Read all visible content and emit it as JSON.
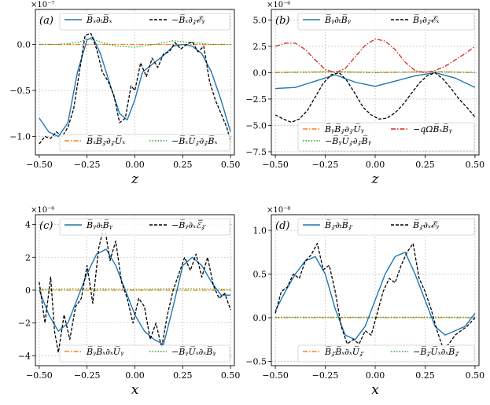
{
  "chart_data": [
    {
      "type": "line",
      "panel": "(a)",
      "xlabel": "z",
      "exponent": "×10⁻⁷",
      "xlim": [
        -0.52,
        0.52
      ],
      "ylim": [
        -1.2,
        0.38
      ],
      "xticks": [
        -0.5,
        -0.25,
        0.0,
        0.25,
        0.5
      ],
      "xtick_labels": [
        "−0.50",
        "−0.25",
        "0.00",
        "0.25",
        "0.50"
      ],
      "yticks": [
        -1.0,
        -0.5,
        0.0
      ],
      "ytick_labels": [
        "−1.0",
        "−0.5",
        "0.0"
      ],
      "legend_top": [
        "B̅ₓ∂ₜB̅ₓ",
        "−B̅ₓ∂𝓏ℰ̅ᵧ"
      ],
      "legend_bottom": [
        "B̅ₓB̅𝓏∂𝓏U̅ₓ",
        "−B̅ₓU̅𝓏∂𝓏B̅ₓ"
      ],
      "series": [
        {
          "name": "B̅ₓ∂ₜB̅ₓ",
          "style": "blue",
          "x": [
            -0.5,
            -0.45,
            -0.4,
            -0.35,
            -0.3,
            -0.25,
            -0.22,
            -0.18,
            -0.12,
            -0.08,
            -0.04,
            0.0,
            0.04,
            0.1,
            0.15,
            0.2,
            0.25,
            0.3,
            0.35,
            0.4,
            0.45,
            0.5
          ],
          "y": [
            -0.8,
            -0.95,
            -1.0,
            -0.85,
            -0.3,
            0.05,
            0.08,
            -0.1,
            -0.5,
            -0.75,
            -0.82,
            -0.6,
            -0.3,
            -0.2,
            -0.12,
            -0.02,
            0.0,
            -0.02,
            -0.1,
            -0.3,
            -0.6,
            -0.95
          ]
        },
        {
          "name": "−B̅ₓ∂𝓏ℰ̅ᵧ",
          "style": "black-dashed",
          "x": [
            -0.5,
            -0.47,
            -0.44,
            -0.41,
            -0.38,
            -0.35,
            -0.32,
            -0.29,
            -0.26,
            -0.23,
            -0.2,
            -0.17,
            -0.14,
            -0.11,
            -0.08,
            -0.05,
            -0.02,
            0.0,
            0.03,
            0.06,
            0.09,
            0.12,
            0.15,
            0.18,
            0.21,
            0.24,
            0.27,
            0.3,
            0.33,
            0.36,
            0.39,
            0.42,
            0.45,
            0.48,
            0.5
          ],
          "y": [
            -1.08,
            -1.0,
            -1.02,
            -0.95,
            -1.0,
            -0.9,
            -0.7,
            -0.3,
            0.1,
            0.12,
            -0.05,
            -0.3,
            -0.4,
            -0.55,
            -0.85,
            -0.8,
            -0.45,
            -0.5,
            -0.2,
            -0.35,
            -0.15,
            -0.25,
            -0.1,
            -0.08,
            0.02,
            -0.05,
            0.0,
            0.03,
            -0.08,
            -0.02,
            -0.4,
            -0.6,
            -0.75,
            -0.9,
            -1.05
          ]
        },
        {
          "name": "B̅ₓB̅𝓏∂𝓏U̅ₓ",
          "style": "orange-dashdot",
          "x": [
            -0.5,
            0.5
          ],
          "y": [
            0.0,
            0.0
          ]
        },
        {
          "name": "−B̅ₓU̅𝓏∂𝓏B̅ₓ",
          "style": "green-dotted",
          "x": [
            -0.5,
            -0.4,
            -0.3,
            -0.25,
            -0.2,
            -0.1,
            0.0,
            0.1,
            0.2,
            0.3,
            0.4,
            0.5
          ],
          "y": [
            0.0,
            0.0,
            0.02,
            0.06,
            0.04,
            -0.02,
            -0.03,
            0.0,
            0.04,
            0.02,
            0.0,
            0.0
          ]
        }
      ]
    },
    {
      "type": "line",
      "panel": "(b)",
      "xlabel": "z",
      "exponent": "×10⁻⁶",
      "xlim": [
        -0.52,
        0.52
      ],
      "ylim": [
        -7.8,
        6.0
      ],
      "xticks": [
        -0.5,
        -0.25,
        0.0,
        0.25,
        0.5
      ],
      "xtick_labels": [
        "−0.50",
        "−0.25",
        "0.00",
        "0.25",
        "0.50"
      ],
      "yticks": [
        -7.5,
        -5.0,
        -2.5,
        0.0,
        2.5,
        5.0
      ],
      "ytick_labels": [
        "−7.5",
        "−5.0",
        "−2.5",
        "0.0",
        "2.5",
        "5.0"
      ],
      "legend_top": [
        "B̅ᵧ∂ₜB̅ᵧ",
        "B̅ᵧ∂𝓏ℰ̅ₓ"
      ],
      "legend_bottom": [
        "B̅ᵧB̅𝓏∂𝓏U̅ᵧ",
        "−qΩB̅ₓB̅ᵧ",
        "−B̅ᵧU̅𝓏∂𝓏B̅ᵧ"
      ],
      "series": [
        {
          "name": "B̅ᵧ∂ₜB̅ᵧ",
          "style": "blue",
          "x": [
            -0.5,
            -0.4,
            -0.3,
            -0.2,
            -0.1,
            0.0,
            0.1,
            0.2,
            0.3,
            0.4,
            0.5
          ],
          "y": [
            -1.5,
            -1.4,
            -0.8,
            -0.2,
            -0.9,
            -1.3,
            -0.8,
            -0.3,
            0.0,
            -0.5,
            -1.4
          ]
        },
        {
          "name": "B̅ᵧ∂𝓏ℰ̅ₓ",
          "style": "black-dashed",
          "x": [
            -0.5,
            -0.46,
            -0.42,
            -0.38,
            -0.34,
            -0.3,
            -0.26,
            -0.22,
            -0.18,
            -0.14,
            -0.1,
            -0.06,
            -0.02,
            0.02,
            0.06,
            0.1,
            0.14,
            0.18,
            0.22,
            0.26,
            0.3,
            0.34,
            0.38,
            0.42,
            0.46,
            0.5
          ],
          "y": [
            -4.0,
            -4.4,
            -4.7,
            -4.4,
            -3.6,
            -2.3,
            -1.0,
            -0.2,
            0.0,
            -0.8,
            -2.0,
            -3.3,
            -4.0,
            -4.4,
            -4.3,
            -3.8,
            -3.0,
            -2.0,
            -1.0,
            -0.3,
            0.0,
            -0.6,
            -1.5,
            -2.5,
            -3.3,
            -4.2
          ]
        },
        {
          "name": "−qΩB̅ₓB̅ᵧ",
          "style": "red-dashdot",
          "x": [
            -0.5,
            -0.45,
            -0.4,
            -0.35,
            -0.3,
            -0.25,
            -0.2,
            -0.15,
            -0.1,
            -0.05,
            0.0,
            0.05,
            0.1,
            0.15,
            0.2,
            0.25,
            0.3,
            0.35,
            0.4,
            0.45,
            0.5
          ],
          "y": [
            2.5,
            2.8,
            2.8,
            2.2,
            1.2,
            0.3,
            0.0,
            0.4,
            1.5,
            2.6,
            3.2,
            3.0,
            2.2,
            1.0,
            0.2,
            0.0,
            0.2,
            0.6,
            1.2,
            1.8,
            2.5
          ]
        },
        {
          "name": "B̅ᵧB̅𝓏∂𝓏U̅ᵧ",
          "style": "orange-dashdot",
          "x": [
            -0.5,
            -0.2,
            0.0,
            0.3,
            0.5
          ],
          "y": [
            0.0,
            0.1,
            0.0,
            0.1,
            0.0
          ]
        },
        {
          "name": "−B̅ᵧU̅𝓏∂𝓏B̅ᵧ",
          "style": "green-dotted",
          "x": [
            -0.5,
            -0.2,
            0.0,
            0.3,
            0.5
          ],
          "y": [
            0.05,
            0.08,
            0.05,
            0.08,
            0.05
          ]
        }
      ]
    },
    {
      "type": "line",
      "panel": "(c)",
      "xlabel": "x",
      "exponent": "×10⁻⁶",
      "xlim": [
        -0.52,
        0.52
      ],
      "ylim": [
        -4.6,
        4.6
      ],
      "xticks": [
        -0.5,
        -0.25,
        0.0,
        0.25,
        0.5
      ],
      "xtick_labels": [
        "−0.50",
        "−0.25",
        "0.00",
        "0.25",
        "0.50"
      ],
      "yticks": [
        -4,
        -2,
        0,
        2,
        4
      ],
      "ytick_labels": [
        "−4",
        "−2",
        "0",
        "2",
        "4"
      ],
      "legend_top": [
        "B̅ᵧ∂ₜB̅ᵧ",
        "−B̅ᵧ∂ₓℰ̅𝓏"
      ],
      "legend_bottom": [
        "B̅ᵧB̅ₓ∂ₓU̅ᵧ",
        "−B̅ᵧU̅ₓ∂ₓB̅ᵧ"
      ],
      "series": [
        {
          "name": "B̅ᵧ∂ₜB̅ᵧ",
          "style": "blue",
          "x": [
            -0.5,
            -0.45,
            -0.4,
            -0.35,
            -0.3,
            -0.25,
            -0.2,
            -0.15,
            -0.1,
            -0.05,
            0.0,
            0.05,
            0.1,
            0.15,
            0.2,
            0.25,
            0.3,
            0.35,
            0.4,
            0.45,
            0.5
          ],
          "y": [
            0.0,
            -1.5,
            -2.5,
            -2.0,
            -0.5,
            1.0,
            2.2,
            2.5,
            1.5,
            0.0,
            -1.5,
            -2.5,
            -3.0,
            -3.3,
            -1.0,
            1.5,
            2.0,
            1.5,
            0.5,
            -0.3,
            -0.3
          ]
        },
        {
          "name": "−B̅ᵧ∂ₓℰ̅𝓏",
          "style": "black-dashed",
          "x": [
            -0.5,
            -0.47,
            -0.44,
            -0.42,
            -0.4,
            -0.37,
            -0.34,
            -0.31,
            -0.28,
            -0.25,
            -0.22,
            -0.19,
            -0.16,
            -0.13,
            -0.1,
            -0.07,
            -0.04,
            -0.01,
            0.02,
            0.05,
            0.08,
            0.11,
            0.14,
            0.17,
            0.2,
            0.23,
            0.26,
            0.29,
            0.32,
            0.35,
            0.38,
            0.41,
            0.44,
            0.47,
            0.5
          ],
          "y": [
            0.5,
            -2.0,
            0.8,
            -2.5,
            -3.8,
            -1.5,
            -3.0,
            -1.0,
            -0.5,
            1.5,
            -0.8,
            2.5,
            4.0,
            1.8,
            3.0,
            0.5,
            -0.5,
            -2.0,
            -0.5,
            -1.0,
            -3.0,
            -2.0,
            -3.5,
            -1.5,
            0.0,
            1.0,
            2.0,
            1.2,
            2.2,
            0.8,
            2.0,
            0.3,
            -0.5,
            -0.2,
            -1.2
          ]
        },
        {
          "name": "B̅ᵧB̅ₓ∂ₓU̅ᵧ",
          "style": "orange-dashdot",
          "x": [
            -0.5,
            0.5
          ],
          "y": [
            0.0,
            0.0
          ]
        },
        {
          "name": "−B̅ᵧU̅ₓ∂ₓB̅ᵧ",
          "style": "green-dotted",
          "x": [
            -0.5,
            -0.25,
            0.0,
            0.25,
            0.5
          ],
          "y": [
            0.05,
            0.1,
            0.05,
            0.1,
            0.05
          ]
        }
      ]
    },
    {
      "type": "line",
      "panel": "(d)",
      "xlabel": "x",
      "exponent": "×10⁻⁸",
      "xlim": [
        -0.52,
        0.52
      ],
      "ylim": [
        -0.55,
        1.18
      ],
      "xticks": [
        -0.5,
        -0.25,
        0.0,
        0.25,
        0.5
      ],
      "xtick_labels": [
        "−0.50",
        "−0.25",
        "0.00",
        "0.25",
        "0.50"
      ],
      "yticks": [
        -0.5,
        0.0,
        0.5,
        1.0
      ],
      "ytick_labels": [
        "−0.5",
        "0.0",
        "0.5",
        "1.0"
      ],
      "legend_top": [
        "B̅𝓏∂ₜB̅𝓏",
        "B̅𝓏∂ₓℰ̅ᵧ"
      ],
      "legend_bottom": [
        "B̅𝓏B̅ₓ∂ₓU̅𝓏",
        "−B̅𝓏U̅ₓ∂ₓB̅𝓏"
      ],
      "series": [
        {
          "name": "B̅𝓏∂ₜB̅𝓏",
          "style": "blue",
          "x": [
            -0.5,
            -0.45,
            -0.4,
            -0.35,
            -0.3,
            -0.25,
            -0.2,
            -0.15,
            -0.1,
            -0.05,
            0.0,
            0.05,
            0.1,
            0.15,
            0.2,
            0.25,
            0.3,
            0.35,
            0.4,
            0.45,
            0.5
          ],
          "y": [
            0.08,
            0.3,
            0.5,
            0.65,
            0.7,
            0.5,
            0.1,
            -0.2,
            -0.25,
            -0.1,
            0.2,
            0.5,
            0.7,
            0.75,
            0.5,
            0.2,
            -0.1,
            -0.2,
            -0.15,
            -0.1,
            0.05
          ]
        },
        {
          "name": "B̅𝓏∂ₓℰ̅ᵧ",
          "style": "black-dashed",
          "x": [
            -0.5,
            -0.47,
            -0.44,
            -0.41,
            -0.38,
            -0.35,
            -0.32,
            -0.29,
            -0.26,
            -0.23,
            -0.2,
            -0.17,
            -0.14,
            -0.11,
            -0.08,
            -0.05,
            -0.02,
            0.01,
            0.04,
            0.07,
            0.1,
            0.13,
            0.16,
            0.19,
            0.22,
            0.25,
            0.28,
            0.31,
            0.34,
            0.37,
            0.4,
            0.43,
            0.46,
            0.5
          ],
          "y": [
            0.05,
            0.3,
            0.35,
            0.5,
            0.45,
            0.65,
            0.72,
            0.85,
            0.55,
            0.6,
            0.3,
            -0.1,
            -0.3,
            -0.25,
            -0.3,
            -0.15,
            -0.2,
            0.05,
            0.3,
            0.45,
            0.4,
            0.6,
            0.75,
            0.85,
            0.45,
            0.3,
            0.1,
            -0.15,
            -0.35,
            -0.3,
            -0.2,
            -0.15,
            -0.1,
            0.0
          ]
        },
        {
          "name": "B̅𝓏B̅ₓ∂ₓU̅𝓏",
          "style": "orange-dashdot",
          "x": [
            -0.5,
            0.5
          ],
          "y": [
            0.0,
            0.0
          ]
        },
        {
          "name": "−B̅𝓏U̅ₓ∂ₓB̅𝓏",
          "style": "green-dotted",
          "x": [
            -0.5,
            0.5
          ],
          "y": [
            0.005,
            0.005
          ]
        }
      ]
    }
  ]
}
